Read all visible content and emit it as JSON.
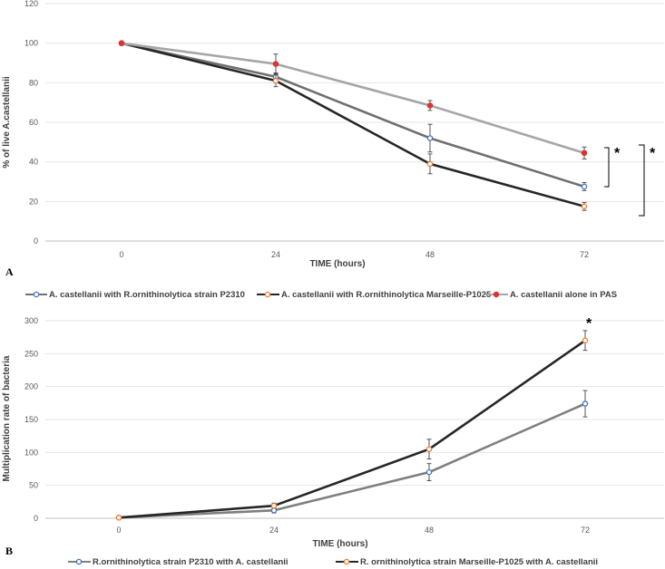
{
  "chart_data": [
    {
      "type": "line",
      "panel_label": "A",
      "title": "",
      "xlabel": "TIME (hours)",
      "ylabel": "% of live A.castellanii",
      "ylim": [
        0,
        120
      ],
      "yticks": [
        0,
        20,
        40,
        60,
        80,
        100,
        120
      ],
      "categories": [
        "0",
        "24",
        "48",
        "72"
      ],
      "legend_position": "bottom",
      "significance_marks": [
        "*",
        "*"
      ],
      "series": [
        {
          "name": "A. castellanii with R.ornithinolytica strain P2310",
          "values": [
            100,
            83,
            52,
            27.5
          ],
          "errors": [
            0,
            2,
            7,
            2
          ],
          "line_color": "#6f6f6f",
          "marker_color": "#4472c4"
        },
        {
          "name": "A. castellanii with R.ornithinolytica Marseille-P1025",
          "values": [
            100,
            81,
            39,
            17.5
          ],
          "errors": [
            0,
            3,
            5,
            2
          ],
          "line_color": "#262626",
          "marker_color": "#ed7d31"
        },
        {
          "name": "A. castellanii alone in PAS",
          "values": [
            100,
            89.5,
            68.5,
            44.5
          ],
          "errors": [
            0,
            5,
            2.5,
            3
          ],
          "line_color": "#a6a6a6",
          "marker_color": "#e03030"
        }
      ]
    },
    {
      "type": "line",
      "panel_label": "B",
      "title": "",
      "xlabel": "TIME  (hours)",
      "ylabel": "Multiplication rate of bacteria",
      "ylim": [
        0,
        300
      ],
      "yticks": [
        0,
        50,
        100,
        150,
        200,
        250,
        300
      ],
      "categories": [
        "0",
        "24",
        "48",
        "72"
      ],
      "legend_position": "bottom",
      "significance_marks": [
        "*"
      ],
      "series": [
        {
          "name": "R.ornithinolytica strain P2310  with A. castellanii",
          "values": [
            1,
            12,
            70,
            174
          ],
          "errors": [
            0,
            4,
            13,
            20
          ],
          "line_color": "#7f7f7f",
          "marker_color": "#4472c4"
        },
        {
          "name": "R. ornithinolytica strain Marseille-P1025 with A. castellanii",
          "values": [
            1,
            19,
            105,
            270
          ],
          "errors": [
            0,
            4,
            15,
            15
          ],
          "line_color": "#262626",
          "marker_color": "#ed7d31"
        }
      ]
    }
  ]
}
